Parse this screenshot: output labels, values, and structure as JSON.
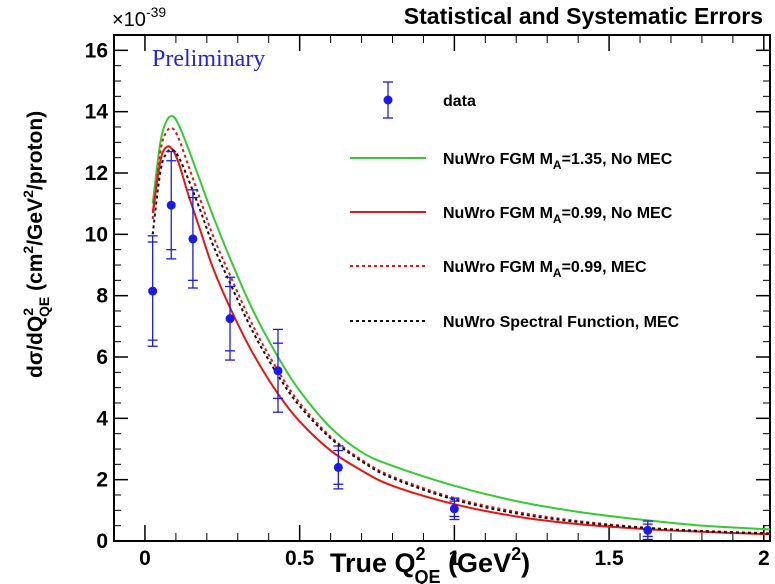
{
  "chart_data": {
    "type": "line",
    "title": "Statistical and Systematic Errors",
    "annotation": "Preliminary",
    "xlabel": {
      "main": "True Q",
      "sup": "2",
      "sub": "QE",
      "unit": " (GeV",
      "unit_sup": "2",
      "unit_end": ")"
    },
    "ylabel": {
      "a": "dσ/dQ",
      "a_sup": "2",
      "a_sub": "QE",
      "b": " (cm",
      "b_sup": "2",
      "c": "/GeV",
      "c_sup": "2",
      "d": "/proton)"
    },
    "y_multiplier": {
      "base": "×10",
      "exp": "-39"
    },
    "xlim": [
      -0.1,
      2.02
    ],
    "ylim": [
      0,
      16.5
    ],
    "x_ticks": [
      0,
      0.5,
      1,
      1.5,
      2
    ],
    "x_tick_labels": [
      "0",
      "0.5",
      "1",
      "1.5",
      "2"
    ],
    "y_ticks": [
      0,
      2,
      4,
      6,
      8,
      10,
      12,
      14,
      16
    ],
    "y_tick_labels": [
      "0",
      "2",
      "4",
      "6",
      "8",
      "10",
      "12",
      "14",
      "16"
    ],
    "legend_position": "top-right",
    "data": {
      "name": "data",
      "color": "#1a1aee",
      "x": [
        0.025,
        0.085,
        0.155,
        0.275,
        0.43,
        0.625,
        1.0,
        1.625
      ],
      "y": [
        8.15,
        10.95,
        9.85,
        7.25,
        5.55,
        2.4,
        1.05,
        0.35
      ],
      "stat_err": [
        1.6,
        1.45,
        1.35,
        1.05,
        0.9,
        0.55,
        0.25,
        0.2
      ],
      "total_err": [
        1.8,
        1.75,
        1.6,
        1.35,
        1.35,
        0.7,
        0.35,
        0.3
      ]
    },
    "series": [
      {
        "name_main": "NuWro FGM M",
        "name_sub": "A",
        "name_rest": "=1.35, No MEC",
        "color": "#33cc33",
        "dash": "solid",
        "x": [
          0.025,
          0.05,
          0.07,
          0.09,
          0.11,
          0.14,
          0.18,
          0.22,
          0.28,
          0.35,
          0.43,
          0.5,
          0.6,
          0.7,
          0.8,
          1.0,
          1.2,
          1.4,
          1.6,
          1.8,
          2.02
        ],
        "y": [
          11.0,
          13.0,
          13.7,
          13.85,
          13.55,
          12.8,
          11.7,
          10.6,
          9.1,
          7.5,
          6.0,
          4.9,
          3.7,
          2.9,
          2.45,
          1.8,
          1.3,
          0.95,
          0.7,
          0.5,
          0.38
        ]
      },
      {
        "name_main": "NuWro FGM M",
        "name_sub": "A",
        "name_rest": "=0.99, No MEC",
        "color": "#ee1111",
        "dash": "solid",
        "x": [
          0.025,
          0.05,
          0.07,
          0.09,
          0.11,
          0.14,
          0.18,
          0.22,
          0.28,
          0.35,
          0.43,
          0.5,
          0.6,
          0.7,
          0.8,
          1.0,
          1.2,
          1.4,
          1.6,
          1.8,
          2.02
        ],
        "y": [
          10.7,
          12.4,
          12.85,
          12.75,
          12.3,
          11.3,
          10.1,
          8.9,
          7.5,
          6.1,
          4.8,
          3.9,
          2.95,
          2.3,
          1.8,
          1.2,
          0.8,
          0.55,
          0.4,
          0.3,
          0.22
        ]
      },
      {
        "name_main": "NuWro FGM M",
        "name_sub": "A",
        "name_rest": "=0.99, MEC",
        "color": "#ee1111",
        "dash": "dashed",
        "x": [
          0.025,
          0.05,
          0.07,
          0.09,
          0.11,
          0.14,
          0.18,
          0.22,
          0.28,
          0.35,
          0.43,
          0.5,
          0.6,
          0.7,
          0.8,
          1.0,
          1.2,
          1.4,
          1.6,
          1.8,
          2.02
        ],
        "y": [
          10.5,
          12.7,
          13.35,
          13.45,
          13.1,
          12.25,
          11.1,
          9.95,
          8.55,
          7.0,
          5.55,
          4.5,
          3.4,
          2.65,
          2.1,
          1.4,
          0.95,
          0.65,
          0.45,
          0.33,
          0.25
        ]
      },
      {
        "name_main": "NuWro Spectral Function, MEC",
        "name_sub": "",
        "name_rest": "",
        "color": "#111111",
        "dash": "dashed",
        "x": [
          0.025,
          0.05,
          0.07,
          0.09,
          0.11,
          0.14,
          0.18,
          0.22,
          0.28,
          0.35,
          0.43,
          0.5,
          0.6,
          0.7,
          0.8,
          1.0,
          1.2,
          1.4,
          1.6,
          1.8,
          2.02
        ],
        "y": [
          10.0,
          12.05,
          12.65,
          12.75,
          12.5,
          11.8,
          10.75,
          9.65,
          8.3,
          6.8,
          5.4,
          4.4,
          3.35,
          2.6,
          2.05,
          1.35,
          0.9,
          0.62,
          0.44,
          0.32,
          0.24
        ]
      }
    ]
  }
}
